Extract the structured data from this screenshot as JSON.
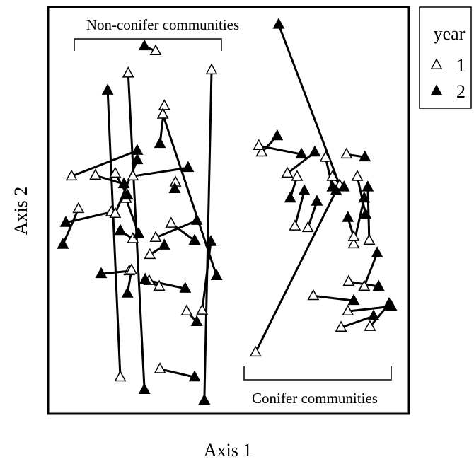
{
  "chart_data": {
    "type": "scatter",
    "x_label": "Axis 1",
    "y_label": "Axis 2",
    "legend_title": "year",
    "legend_position": "right",
    "annotations": [
      "Non-conifer communities",
      "Conifer communities"
    ],
    "xlim": [
      0,
      100
    ],
    "ylim": [
      0,
      100
    ],
    "series": [
      {
        "name": "1",
        "color": "#ffffff",
        "x": [
          29.8,
          22.2,
          45.3,
          20.0,
          32.2,
          31.8,
          6.5,
          13.1,
          8.4,
          17.5,
          18.6,
          23.5,
          21.6,
          18.6,
          35.3,
          23.5,
          29.8,
          28.2,
          34.1,
          22.5,
          28.0,
          30.8,
          23.1,
          42.7,
          38.4,
          31.0,
          57.5,
          59.2,
          58.4,
          80.8,
          66.3,
          68.4,
          72.0,
          73.5,
          83.1,
          81.2,
          89.2,
          83.3,
          87.6,
          84.7,
          82.7,
          76.9,
          84.7,
          85.7,
          89.0,
          69.0,
          78.8
        ],
        "values": [
          89.2,
          83.7,
          84.5,
          9.0,
          75.7,
          73.6,
          58.4,
          58.6,
          50.4,
          49.6,
          49.2,
          58.4,
          52.9,
          59.1,
          56.9,
          43.0,
          43.3,
          39.1,
          46.8,
          35.1,
          32.7,
          31.3,
          35.3,
          25.4,
          25.2,
          11.0,
          15.1,
          64.3,
          65.9,
          56.2,
          59.1,
          46.1,
          45.7,
          29.0,
          25.2,
          21.2,
          21.4,
          32.5,
          31.3,
          41.7,
          63.8,
          63.0,
          43.5,
          58.3,
          42.6,
          58.3,
          58.3
        ]
      },
      {
        "name": "2",
        "color": "#000000",
        "x": [
          26.7,
          26.7,
          43.3,
          16.5,
          31.0,
          46.7,
          24.7,
          21.0,
          4.1,
          4.9,
          24.7,
          38.8,
          25.1,
          22.0,
          35.1,
          20.0,
          41.2,
          32.2,
          40.6,
          14.7,
          38.0,
          26.9,
          22.0,
          45.1,
          41.2,
          40.6,
          79.8,
          63.5,
          70.2,
          63.9,
          73.9,
          71.0,
          74.5,
          84.7,
          95.1,
          90.2,
          94.5,
          91.6,
          91.2,
          87.6,
          87.8,
          78.8,
          83.1,
          88.0,
          88.6,
          67.1,
          82.0
        ],
        "values": [
          90.4,
          5.9,
          3.3,
          79.5,
          66.4,
          33.9,
          64.7,
          56.5,
          41.6,
          47.0,
          62.4,
          60.5,
          44.2,
          53.7,
          55.3,
          45.0,
          47.5,
          41.4,
          42.6,
          34.4,
          30.8,
          33.0,
          29.6,
          42.3,
          22.6,
          9.0,
          54.8,
          68.3,
          63.8,
          95.7,
          64.3,
          54.8,
          52.2,
          27.8,
          26.4,
          24.0,
          27.0,
          31.3,
          39.5,
          53.0,
          63.1,
          55.7,
          48.2,
          49.0,
          55.7,
          53.0,
          55.7
        ]
      }
    ]
  }
}
